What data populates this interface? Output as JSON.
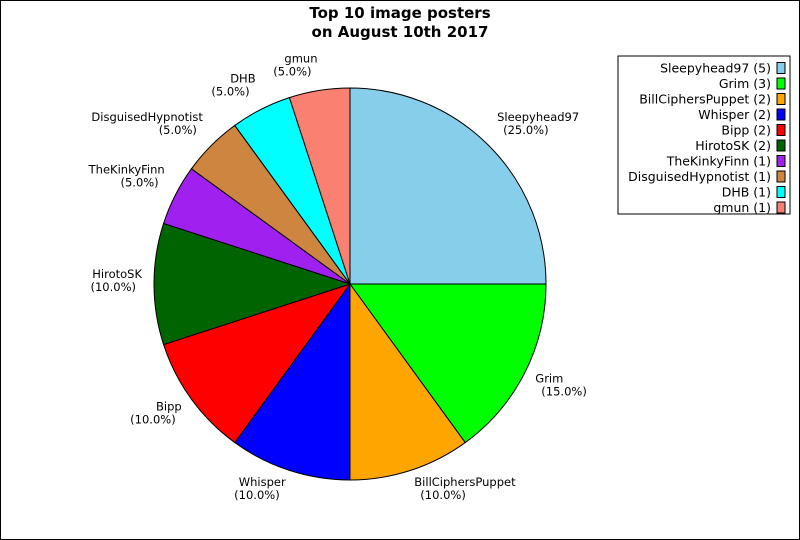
{
  "chart_data": {
    "type": "pie",
    "title": [
      "Top 10 image posters",
      "on August 10th 2017"
    ],
    "slices": [
      {
        "label": "Sleepyhead97",
        "count": 5,
        "percent": "25.0%",
        "color": "#87ceeb"
      },
      {
        "label": "Grim",
        "count": 3,
        "percent": "15.0%",
        "color": "#00ff00"
      },
      {
        "label": "BillCiphersPuppet",
        "count": 2,
        "percent": "10.0%",
        "color": "#ffa500"
      },
      {
        "label": "Whisper",
        "count": 2,
        "percent": "10.0%",
        "color": "#0000ff"
      },
      {
        "label": "Bipp",
        "count": 2,
        "percent": "10.0%",
        "color": "#ff0000"
      },
      {
        "label": "HirotoSK",
        "count": 2,
        "percent": "10.0%",
        "color": "#006400"
      },
      {
        "label": "TheKinkyFinn",
        "count": 1,
        "percent": "5.0%",
        "color": "#a020f0"
      },
      {
        "label": "DisguisedHypnotist",
        "count": 1,
        "percent": "5.0%",
        "color": "#cd853f"
      },
      {
        "label": "DHB",
        "count": 1,
        "percent": "5.0%",
        "color": "#00ffff"
      },
      {
        "label": "gmun",
        "count": 1,
        "percent": "5.0%",
        "color": "#fa8072"
      }
    ],
    "legend": {
      "position": "top-right",
      "entries": [
        "Sleepyhead97 (5)",
        "Grim (3)",
        "BillCiphersPuppet (2)",
        "Whisper (2)",
        "Bipp (2)",
        "HirotoSK (2)",
        "TheKinkyFinn (1)",
        "DisguisedHypnotist (1)",
        "DHB (1)",
        "gmun (1)"
      ]
    }
  }
}
